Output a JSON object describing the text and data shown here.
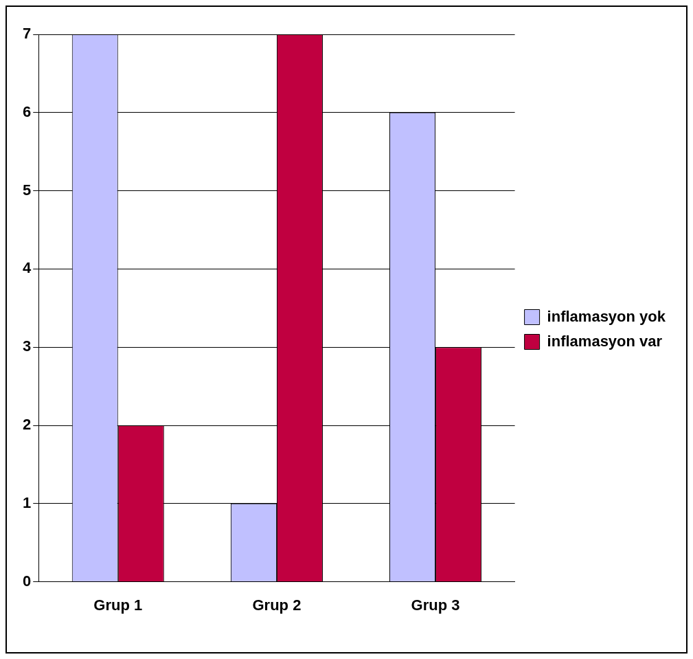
{
  "chart_data": {
    "type": "bar",
    "categories": [
      "Grup 1",
      "Grup 2",
      "Grup 3"
    ],
    "series": [
      {
        "name": "inflamasyon yok",
        "color": "#c0c0ff",
        "values": [
          7,
          1,
          6
        ]
      },
      {
        "name": "inflamasyon var",
        "color": "#c00040",
        "values": [
          2,
          7,
          3
        ]
      }
    ],
    "ylim": [
      0,
      7
    ],
    "yticks": [
      0,
      1,
      2,
      3,
      4,
      5,
      6,
      7
    ],
    "grid": "y",
    "legend": "right"
  }
}
